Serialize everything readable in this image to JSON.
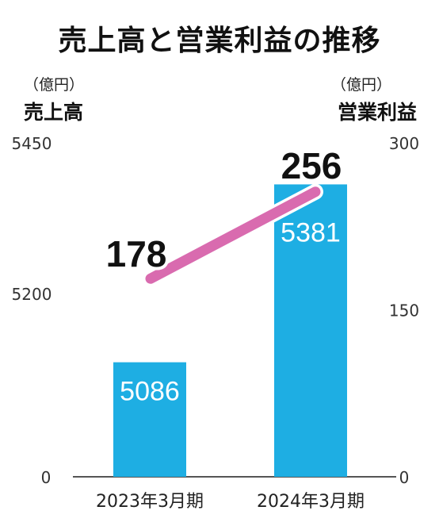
{
  "chart_data": {
    "type": "bar+line",
    "title": "売上高と営業利益の推移",
    "categories": [
      "2023年3月期",
      "2024年3月期"
    ],
    "left_axis": {
      "label": "売上高",
      "unit": "（億円）",
      "ticks": [
        "0",
        "5200",
        "5450"
      ],
      "note": "broken axis between 0 and 5200"
    },
    "right_axis": {
      "label": "営業利益",
      "unit": "（億円）",
      "ticks": [
        "0",
        "150",
        "300"
      ],
      "ylim": [
        0,
        300
      ]
    },
    "series": [
      {
        "name": "売上高",
        "type": "bar",
        "values": [
          5086,
          5381
        ],
        "labels": [
          "5086",
          "5381"
        ],
        "color": "#1eaee3"
      },
      {
        "name": "営業利益",
        "type": "line",
        "values": [
          178,
          256
        ],
        "labels": [
          "178",
          "256"
        ],
        "color": "#d96baf"
      }
    ]
  }
}
